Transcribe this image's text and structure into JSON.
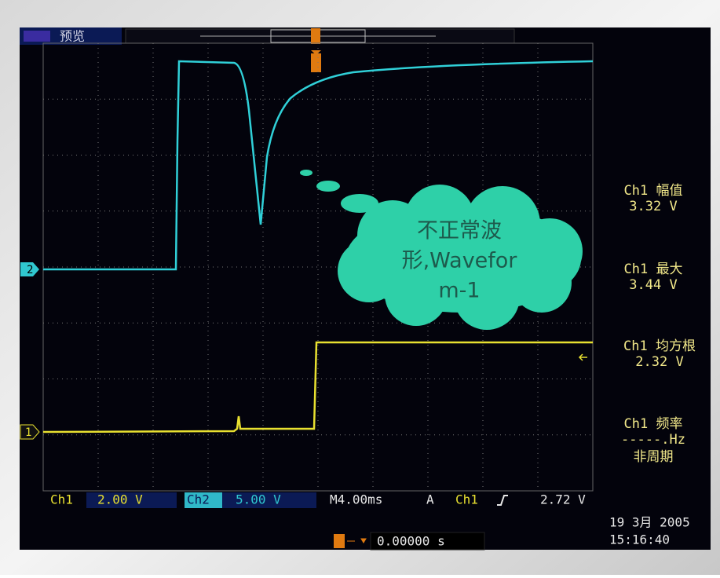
{
  "header": {
    "mode": "预览"
  },
  "markers": {
    "channel_2": "2",
    "channel_1": "1"
  },
  "callout": {
    "lines": [
      "不正常波",
      "形,Wavefor",
      "m-1"
    ]
  },
  "measurements": [
    {
      "label": "Ch1 幅值",
      "value": "3.32 V"
    },
    {
      "label": "Ch1 最大",
      "value": "3.44 V"
    },
    {
      "label": "Ch1 均方根",
      "value": "2.32 V"
    },
    {
      "label": "Ch1 频率",
      "value": "-----.Hz",
      "note": "非周期"
    }
  ],
  "status_bar": {
    "ch1": "Ch1",
    "ch1_scale": "2.00 V",
    "ch2": "Ch2",
    "ch2_scale": "5.00 V",
    "timebase": "M4.00ms",
    "trigger_mode": "A",
    "trigger_source": "Ch1",
    "trigger_level": "2.72 V"
  },
  "trigger_position": "0.00000 s",
  "timestamp": {
    "date": "19 3月  2005",
    "time": "15:16:40"
  }
}
